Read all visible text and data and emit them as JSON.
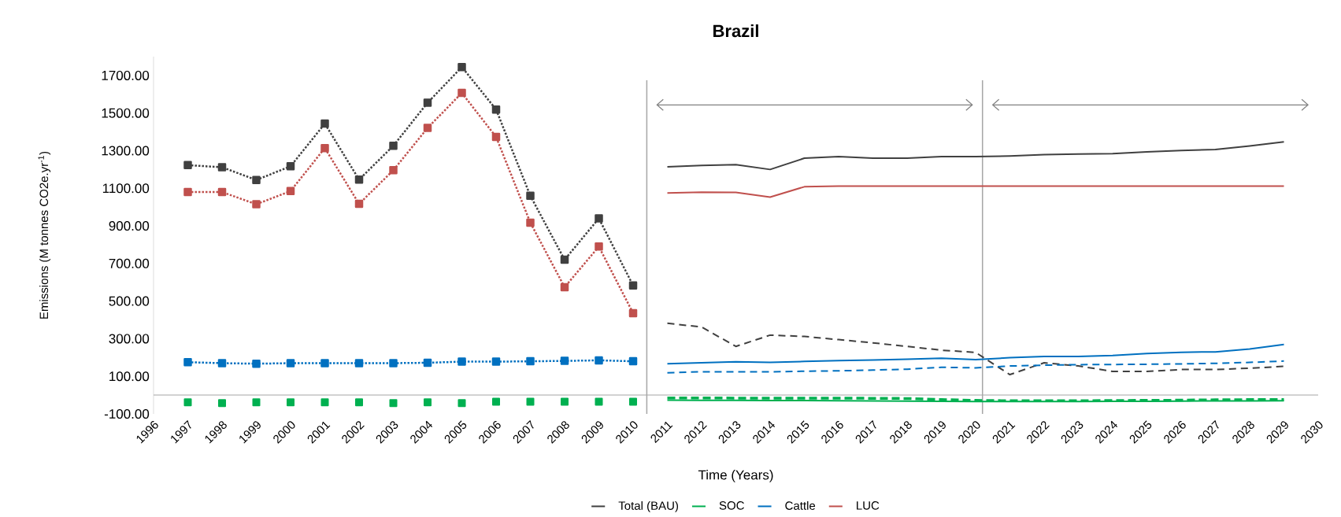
{
  "chart_data": {
    "type": "line",
    "title": "Brazil",
    "xlabel": "Time (Years)",
    "ylabel": "Emissions (M tonnes CO2e.yr$^{-1}$)",
    "xlim": [
      1996,
      2030
    ],
    "xticks": [
      1996,
      1997,
      1998,
      1999,
      2000,
      2001,
      2002,
      2003,
      2004,
      2005,
      2006,
      2007,
      2008,
      2009,
      2010,
      2011,
      2012,
      2013,
      2014,
      2015,
      2016,
      2017,
      2018,
      2019,
      2020,
      2021,
      2022,
      2023,
      2024,
      2025,
      2026,
      2027,
      2028,
      2029,
      2030
    ],
    "ylim": [
      -100,
      1800
    ],
    "yticks": [
      {
        "value": -100,
        "label": "-100.00"
      },
      {
        "value": 100,
        "label": "100.00"
      },
      {
        "value": 300,
        "label": "300.00"
      },
      {
        "value": 500,
        "label": "500.00"
      },
      {
        "value": 700,
        "label": "700.00"
      },
      {
        "value": 900,
        "label": "900.00"
      },
      {
        "value": 1100,
        "label": "1100.00"
      },
      {
        "value": 1300,
        "label": "1300.00"
      },
      {
        "value": 1500,
        "label": "1500.00"
      },
      {
        "value": 1700,
        "label": "1700.00"
      }
    ],
    "grid": false,
    "legend": "bottom",
    "ref_lines": [
      {
        "axis": "x",
        "value": 2010.4,
        "color": "#a6a6a6"
      },
      {
        "axis": "x",
        "value": 2020.2,
        "color": "#a6a6a6"
      }
    ],
    "series": [
      {
        "color": "#404040",
        "line_style": "dotted",
        "marker": "square",
        "x": [
          1997,
          1998,
          1999,
          2000,
          2001,
          2002,
          2003,
          2004,
          2005,
          2006,
          2007,
          2008,
          2009,
          2010
        ],
        "values": [
          1223,
          1212,
          1144,
          1217,
          1444,
          1146,
          1326,
          1555,
          1745,
          1519,
          1060,
          720,
          940,
          583
        ]
      },
      {
        "color": "#c0504d",
        "line_style": "dotted",
        "marker": "square",
        "x": [
          1997,
          1998,
          1999,
          2000,
          2001,
          2002,
          2003,
          2004,
          2005,
          2006,
          2007,
          2008,
          2009,
          2010
        ],
        "values": [
          1080,
          1080,
          1015,
          1085,
          1314,
          1017,
          1196,
          1421,
          1607,
          1373,
          917,
          574,
          790,
          436
        ]
      },
      {
        "color": "#0070c0",
        "line_style": "dotted",
        "marker": "square",
        "x": [
          1997,
          1998,
          1999,
          2000,
          2001,
          2002,
          2003,
          2004,
          2005,
          2006,
          2007,
          2008,
          2009,
          2010
        ],
        "values": [
          175,
          170,
          167,
          170,
          170,
          170,
          170,
          172,
          178,
          178,
          180,
          182,
          185,
          180
        ]
      },
      {
        "type": "scatter",
        "color": "#00b050",
        "marker": "square",
        "x": [
          1997,
          1998,
          1999,
          2000,
          2001,
          2002,
          2003,
          2004,
          2005,
          2006,
          2007,
          2008,
          2009,
          2010
        ],
        "values": [
          -38,
          -42,
          -38,
          -38,
          -38,
          -38,
          -42,
          -38,
          -42,
          -35,
          -35,
          -35,
          -35,
          -35
        ]
      },
      {
        "name": "Total (BAU)",
        "color": "#404040",
        "line_style": "solid",
        "marker": "none",
        "x": [
          2011,
          2012,
          2013,
          2014,
          2015,
          2016,
          2017,
          2018,
          2019,
          2020,
          2021,
          2022,
          2023,
          2024,
          2025,
          2026,
          2027,
          2028,
          2029
        ],
        "values": [
          1214,
          1221,
          1226,
          1200,
          1260,
          1268,
          1260,
          1260,
          1268,
          1268,
          1272,
          1279,
          1282,
          1284,
          1294,
          1301,
          1306,
          1325,
          1347
        ]
      },
      {
        "name": "SOC",
        "color": "#00b050",
        "line_style": "solid",
        "marker": "none",
        "x": [
          2011,
          2012,
          2013,
          2014,
          2015,
          2016,
          2017,
          2018,
          2019,
          2020,
          2021,
          2022,
          2023,
          2024,
          2025,
          2026,
          2027,
          2028,
          2029
        ],
        "values": [
          -27,
          -28,
          -28,
          -29,
          -29,
          -30,
          -31,
          -32,
          -33,
          -34,
          -34,
          -34,
          -34,
          -33,
          -33,
          -32,
          -31,
          -31,
          -30
        ]
      },
      {
        "name": "Cattle",
        "color": "#0070c0",
        "line_style": "solid",
        "marker": "none",
        "x": [
          2011,
          2012,
          2013,
          2014,
          2015,
          2016,
          2017,
          2018,
          2019,
          2020,
          2021,
          2022,
          2023,
          2024,
          2025,
          2026,
          2027,
          2028,
          2029
        ],
        "values": [
          167,
          172,
          177,
          174,
          179,
          184,
          187,
          191,
          196,
          189,
          199,
          206,
          206,
          211,
          221,
          228,
          230,
          245,
          269
        ]
      },
      {
        "name": "LUC",
        "color": "#c0504d",
        "line_style": "solid",
        "marker": "none",
        "x": [
          2011,
          2012,
          2013,
          2014,
          2015,
          2016,
          2017,
          2018,
          2019,
          2020,
          2021,
          2022,
          2023,
          2024,
          2025,
          2026,
          2027,
          2028,
          2029
        ],
        "values": [
          1075,
          1079,
          1078,
          1053,
          1108,
          1112,
          1112,
          1112,
          1112,
          1112,
          1112,
          1112,
          1112,
          1112,
          1112,
          1112,
          1112,
          1112,
          1112
        ]
      },
      {
        "color": "#404040",
        "line_style": "dashed",
        "marker": "none",
        "x": [
          2011,
          2012,
          2013,
          2014,
          2015,
          2016,
          2017,
          2018,
          2019,
          2020,
          2021,
          2022,
          2023,
          2024,
          2025,
          2026,
          2027,
          2028,
          2029
        ],
        "values": [
          382,
          362,
          259,
          319,
          312,
          295,
          278,
          259,
          239,
          227,
          109,
          172,
          155,
          126,
          126,
          136,
          136,
          143,
          153
        ]
      },
      {
        "color": "#0070c0",
        "line_style": "dashed",
        "marker": "none",
        "x": [
          2011,
          2012,
          2013,
          2014,
          2015,
          2016,
          2017,
          2018,
          2019,
          2020,
          2021,
          2022,
          2023,
          2024,
          2025,
          2026,
          2027,
          2028,
          2029
        ],
        "values": [
          119,
          124,
          124,
          124,
          127,
          129,
          133,
          138,
          148,
          145,
          155,
          159,
          162,
          163,
          164,
          166,
          169,
          174,
          181
        ]
      },
      {
        "color": "#00b050",
        "line_style": "dashed",
        "marker": "none",
        "x": [
          2011,
          2012,
          2013,
          2014,
          2015,
          2016,
          2017,
          2018,
          2019,
          2020,
          2021,
          2022,
          2023,
          2024,
          2025,
          2026,
          2027,
          2028,
          2029
        ],
        "values": [
          -15,
          -15,
          -16,
          -16,
          -16,
          -16,
          -17,
          -18,
          -24,
          -28,
          -30,
          -30,
          -30,
          -29,
          -28,
          -27,
          -25,
          -24,
          -24
        ]
      }
    ]
  }
}
